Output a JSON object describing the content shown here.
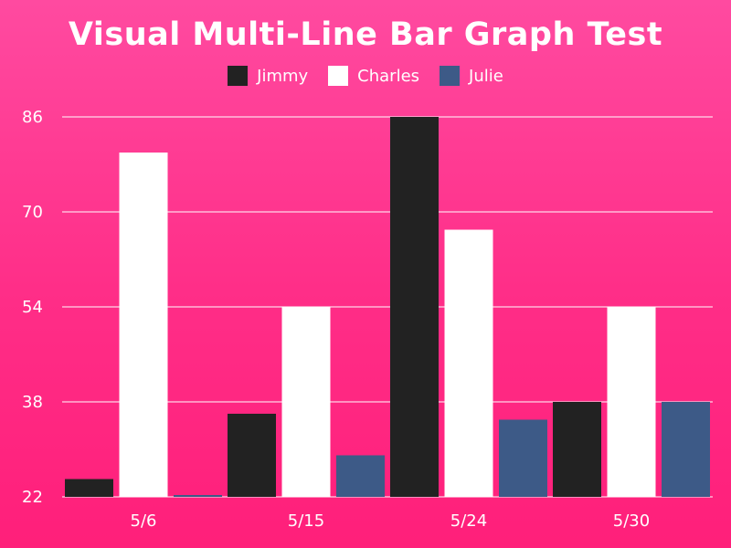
{
  "chart_data": {
    "type": "bar",
    "title": "Visual Multi-Line Bar Graph Test",
    "categories": [
      "5/6",
      "5/15",
      "5/24",
      "5/30"
    ],
    "series": [
      {
        "name": "Jimmy",
        "color": "#222222",
        "values": [
          25,
          36,
          86,
          38
        ]
      },
      {
        "name": "Charles",
        "color": "#ffffff",
        "values": [
          80,
          54,
          67,
          54
        ]
      },
      {
        "name": "Julie",
        "color": "#3d5a87",
        "values": [
          22,
          29,
          35,
          38
        ]
      }
    ],
    "yticks": [
      22,
      38,
      54,
      70,
      86
    ],
    "ylim": [
      22,
      86
    ],
    "xlabel": "",
    "ylabel": "",
    "grid": true,
    "legend_position": "top-center"
  }
}
